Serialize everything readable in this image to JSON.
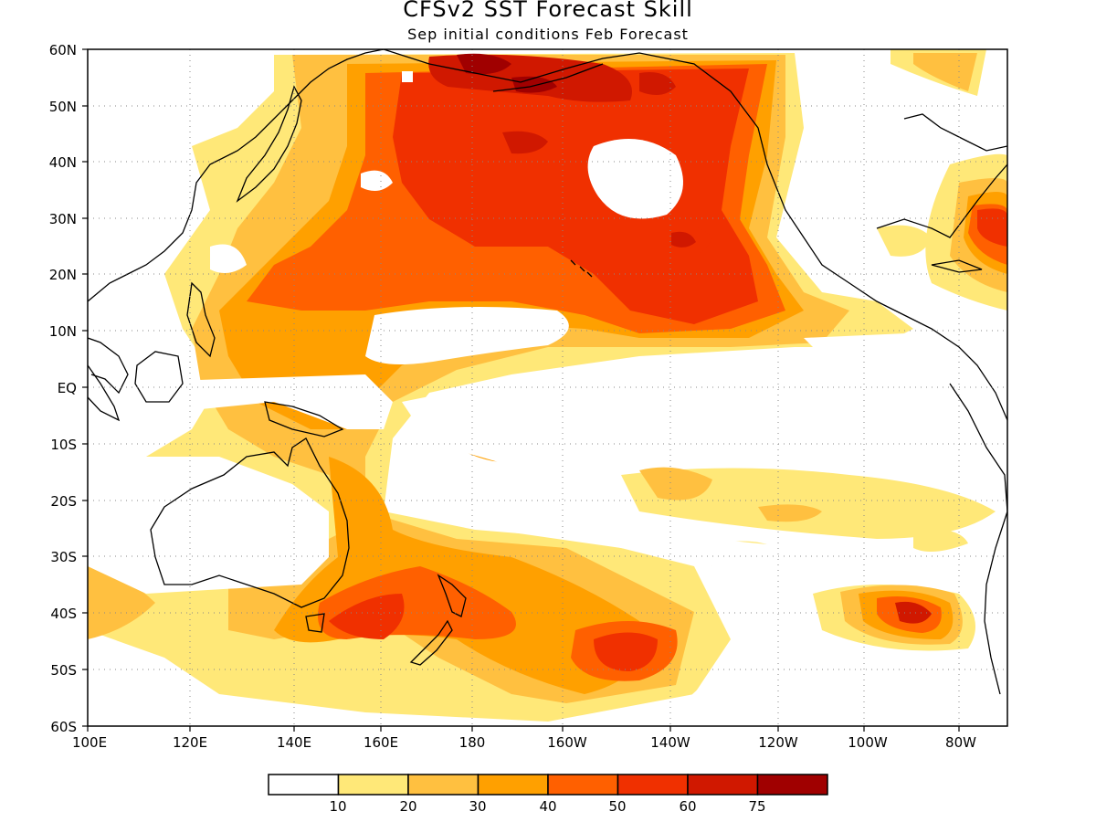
{
  "title": "CFSv2 SST Forecast Skill",
  "subtitle": "Sep initial conditions  Feb Forecast",
  "map": {
    "lat_labels": [
      "60N",
      "50N",
      "40N",
      "30N",
      "20N",
      "10N",
      "EQ",
      "10S",
      "20S",
      "30S",
      "40S",
      "50S",
      "60S"
    ],
    "lon_labels": [
      "100E",
      "120E",
      "140E",
      "160E",
      "180",
      "160W",
      "140W",
      "120W",
      "100W",
      "80W"
    ],
    "lon_range": [
      100,
      290
    ],
    "lat_range": [
      -60,
      60
    ],
    "grid": "dotted"
  },
  "legend": {
    "levels": [
      "10",
      "20",
      "30",
      "40",
      "50",
      "60",
      "75"
    ],
    "colors": [
      "#ffffff",
      "#ffe878",
      "#ffc040",
      "#ffa000",
      "#ff6000",
      "#f03000",
      "#d01800",
      "#a00000"
    ]
  }
}
